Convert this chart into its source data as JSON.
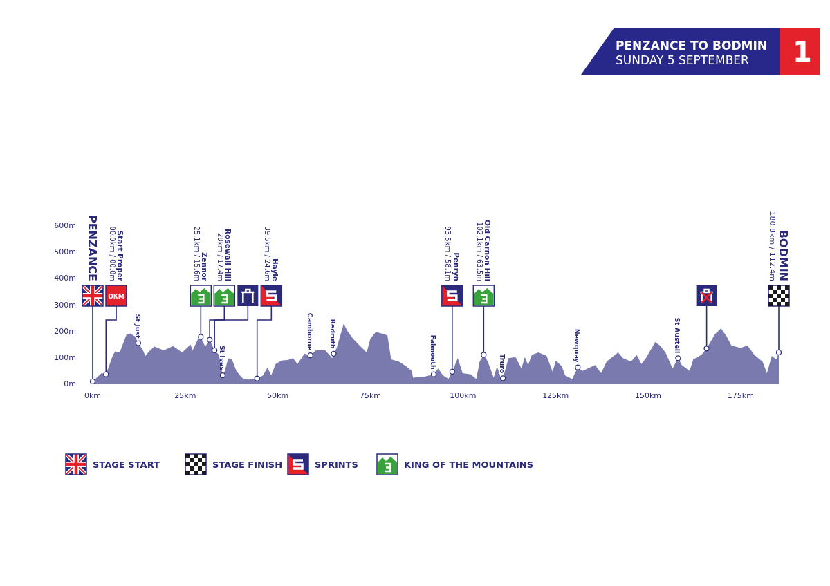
{
  "chart_data": {
    "type": "area",
    "title": "PENZANCE TO BODMIN",
    "subtitle": "SUNDAY 5 SEPTEMBER",
    "xlim": [
      0,
      185.3
    ],
    "ylim": [
      0,
      600
    ],
    "xticks": [
      {
        "value": 0,
        "label": "0km"
      },
      {
        "value": 25,
        "label": "25km"
      },
      {
        "value": 50,
        "label": "50km"
      },
      {
        "value": 75,
        "label": "75km"
      },
      {
        "value": 100,
        "label": "100km"
      },
      {
        "value": 125,
        "label": "125km"
      },
      {
        "value": 150,
        "label": "150km"
      },
      {
        "value": 175,
        "label": "175km"
      }
    ],
    "yticks": [
      {
        "value": 0,
        "label": "0m"
      },
      {
        "value": 100,
        "label": "100m"
      },
      {
        "value": 200,
        "label": "200m"
      },
      {
        "value": 300,
        "label": "300m"
      },
      {
        "value": 400,
        "label": "400m"
      },
      {
        "value": 500,
        "label": "500m"
      },
      {
        "value": 600,
        "label": "600m"
      }
    ],
    "series": [
      {
        "color": "#7b7aae",
        "x": [
          0,
          2.4,
          3.6,
          5.5,
          6.1,
          7.3,
          9.2,
          10.2,
          11.4,
          12.3,
          13.6,
          14.2,
          15.5,
          16.7,
          19.2,
          21.7,
          24.2,
          26.4,
          27.0,
          28.5,
          29.2,
          29.8,
          30.4,
          31.6,
          32.9,
          34.1,
          35.1,
          35.7,
          36.6,
          37.6,
          38.8,
          39.8,
          40.7,
          42.2,
          44.4,
          46.0,
          47.2,
          48.2,
          49.4,
          51.0,
          52.8,
          54.1,
          55.3,
          57.2,
          58.8,
          60.3,
          62.8,
          64.7,
          65.1,
          65.9,
          67.8,
          68.7,
          70.3,
          72.1,
          74.0,
          75.0,
          76.5,
          78.4,
          79.6,
          80.6,
          82.7,
          84.7,
          86.2,
          86.5,
          89.6,
          92.1,
          93.3,
          94.6,
          96.1,
          97.1,
          98.6,
          99.9,
          102.1,
          103.6,
          104.5,
          105.6,
          106.7,
          108.3,
          109.2,
          110.2,
          110.8,
          112.3,
          114.2,
          115.8,
          116.7,
          117.6,
          118.6,
          120.4,
          122.6,
          124.2,
          125.1,
          126.7,
          127.6,
          129.5,
          131.0,
          132.3,
          135.7,
          137.3,
          138.8,
          141.9,
          143.2,
          145.4,
          146.9,
          148.2,
          149.4,
          151.9,
          153.2,
          154.7,
          156.6,
          158.1,
          159.1,
          161.2,
          162.2,
          164.4,
          165.8,
          168.1,
          169.7,
          171.2,
          172.5,
          175.0,
          176.8,
          178.7,
          180.9,
          182.1,
          183.4,
          184.6,
          185.3
        ],
        "values": [
          8,
          39,
          35,
          109,
          122,
          118,
          188,
          189,
          179,
          153,
          126,
          105,
          126,
          140,
          126,
          142,
          118,
          148,
          126,
          170,
          177,
          157,
          140,
          166,
          126,
          109,
          31,
          48,
          96,
          92,
          48,
          31,
          17,
          15,
          19,
          31,
          61,
          31,
          74,
          87,
          90,
          96,
          74,
          113,
          107,
          126,
          126,
          96,
          113,
          135,
          227,
          201,
          170,
          144,
          118,
          170,
          196,
          188,
          183,
          92,
          83,
          65,
          48,
          22,
          26,
          35,
          57,
          31,
          18,
          45,
          96,
          39,
          35,
          17,
          83,
          109,
          83,
          22,
          65,
          22,
          20,
          96,
          100,
          57,
          100,
          70,
          109,
          118,
          105,
          45,
          87,
          65,
          31,
          17,
          61,
          48,
          70,
          39,
          83,
          118,
          96,
          83,
          109,
          74,
          96,
          157,
          144,
          118,
          57,
          96,
          70,
          48,
          92,
          109,
          133,
          188,
          209,
          179,
          144,
          135,
          144,
          109,
          83,
          39,
          105,
          92,
          118
        ]
      },
      {
        "type": "scatter",
        "marker": "circle",
        "color": "#ffffff",
        "x": [
          0,
          3.6,
          12.3,
          29.2,
          31.6,
          32.9,
          35.1,
          44.4,
          58.8,
          65.1,
          92.1,
          97.1,
          105.6,
          110.8,
          131.0,
          158.1,
          165.8,
          185.3
        ],
        "values": [
          8,
          35,
          153,
          177,
          166,
          126,
          31,
          19,
          107,
          113,
          35,
          45,
          109,
          20,
          61,
          96,
          133,
          118
        ]
      }
    ],
    "annotations": [
      "PENZANCE",
      "Start Proper\n00.0km / 00.0m",
      {
        "text": "OKM",
        "x": 3.6,
        "y": 35
      },
      {
        "text": "St Just",
        "x": 12.3,
        "y": 153
      },
      "Zennor\n25.1km / 15.6m",
      "Rosewall Hill\n28km / 17.4m",
      {
        "text": "St Ives",
        "x": 35.1,
        "y": 31
      },
      "Hayle\n39.5km / 24.6m",
      {
        "text": "Camborne",
        "x": 58.8,
        "y": 107
      },
      {
        "text": "Redruth",
        "x": 65.1,
        "y": 113
      },
      {
        "text": "Falmouth",
        "x": 92.1,
        "y": 35
      },
      "Penryn\n93.5km / 58.1m",
      "Old Carnon Hill\n102.1km / 63.5m",
      {
        "text": "Truro",
        "x": 110.8,
        "y": 20
      },
      {
        "text": "Newquay",
        "x": 131.0,
        "y": 61
      },
      {
        "text": "St Austell",
        "x": 158.1,
        "y": 96
      },
      "BODMIN\n180.8km / 112.4m",
      "1",
      "STAGE START",
      "STAGE FINISH",
      "SPRINTS",
      "KING OF THE MOUNTAINS"
    ]
  }
}
